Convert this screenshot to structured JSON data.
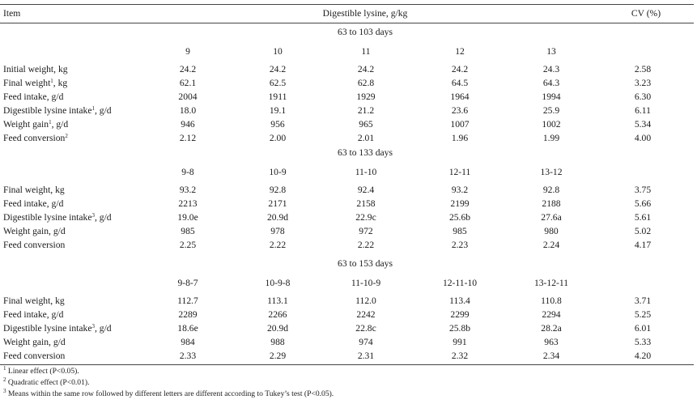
{
  "header": {
    "item": "Item",
    "digestible": "Digestible lysine, g/kg",
    "cv": "CV (%)"
  },
  "sections": [
    {
      "period": "63 to 103 days",
      "levels": [
        "9",
        "10",
        "11",
        "12",
        "13"
      ],
      "rows": [
        {
          "label": "Initial weight, kg",
          "sup": "",
          "unit": "",
          "values": [
            "24.2",
            "24.2",
            "24.2",
            "24.2",
            "24.3"
          ],
          "cv": "2.58"
        },
        {
          "label": "Final weight",
          "sup": "1",
          "unit": ", kg",
          "values": [
            "62.1",
            "62.5",
            "62.8",
            "64.5",
            "64.3"
          ],
          "cv": "3.23"
        },
        {
          "label": "Feed intake, g/d",
          "sup": "",
          "unit": "",
          "values": [
            "2004",
            "1911",
            "1929",
            "1964",
            "1994"
          ],
          "cv": "6.30"
        },
        {
          "label": "Digestible lysine intake",
          "sup": "1",
          "unit": ", g/d",
          "values": [
            "18.0",
            "19.1",
            "21.2",
            "23.6",
            "25.9"
          ],
          "cv": "6.11"
        },
        {
          "label": "Weight gain",
          "sup": "1",
          "unit": ", g/d",
          "values": [
            "946",
            "956",
            "965",
            "1007",
            "1002"
          ],
          "cv": "5.34"
        },
        {
          "label": "Feed conversion",
          "sup": "2",
          "unit": "",
          "values": [
            "2.12",
            "2.00",
            "2.01",
            "1.96",
            "1.99"
          ],
          "cv": "4.00"
        }
      ]
    },
    {
      "period": "63 to 133 days",
      "levels": [
        "9-8",
        "10-9",
        "11-10",
        "12-11",
        "13-12"
      ],
      "rows": [
        {
          "label": "Final weight, kg",
          "sup": "",
          "unit": "",
          "values": [
            "93.2",
            "92.8",
            "92.4",
            "93.2",
            "92.8"
          ],
          "cv": "3.75"
        },
        {
          "label": "Feed intake, g/d",
          "sup": "",
          "unit": "",
          "values": [
            "2213",
            "2171",
            "2158",
            "2199",
            "2188"
          ],
          "cv": "5.66"
        },
        {
          "label": "Digestible lysine intake",
          "sup": "3",
          "unit": ", g/d",
          "values": [
            "19.0e",
            "20.9d",
            "22.9c",
            "25.6b",
            "27.6a"
          ],
          "cv": "5.61"
        },
        {
          "label": "Weight gain, g/d",
          "sup": "",
          "unit": "",
          "values": [
            "985",
            "978",
            "972",
            "985",
            "980"
          ],
          "cv": "5.02"
        },
        {
          "label": "Feed conversion",
          "sup": "",
          "unit": "",
          "values": [
            "2.25",
            "2.22",
            "2.22",
            "2.23",
            "2.24"
          ],
          "cv": "4.17"
        }
      ]
    },
    {
      "period": "63 to 153 days",
      "levels": [
        "9-8-7",
        "10-9-8",
        "11-10-9",
        "12-11-10",
        "13-12-11"
      ],
      "rows": [
        {
          "label": "Final weight, kg",
          "sup": "",
          "unit": "",
          "values": [
            "112.7",
            "113.1",
            "112.0",
            "113.4",
            "110.8"
          ],
          "cv": "3.71"
        },
        {
          "label": "Feed intake, g/d",
          "sup": "",
          "unit": "",
          "values": [
            "2289",
            "2266",
            "2242",
            "2299",
            "2294"
          ],
          "cv": "5.25"
        },
        {
          "label": "Digestible lysine intake",
          "sup": "3",
          "unit": ", g/d",
          "values": [
            "18.6e",
            "20.9d",
            "22.8c",
            "25.8b",
            "28.2a"
          ],
          "cv": "6.01"
        },
        {
          "label": "Weight gain, g/d",
          "sup": "",
          "unit": "",
          "values": [
            "984",
            "988",
            "974",
            "991",
            "963"
          ],
          "cv": "5.33"
        },
        {
          "label": "Feed conversion",
          "sup": "",
          "unit": "",
          "values": [
            "2.33",
            "2.29",
            "2.31",
            "2.32",
            "2.34"
          ],
          "cv": "4.20"
        }
      ]
    }
  ],
  "footnotes": [
    {
      "mark": "1",
      "text": " Linear effect (P<0.05)."
    },
    {
      "mark": "2",
      "text": " Quadratic effect (P<0.01)."
    },
    {
      "mark": "3",
      "text": " Means within the same row followed by different letters are different according to Tukey’s test (P<0.05)."
    }
  ]
}
